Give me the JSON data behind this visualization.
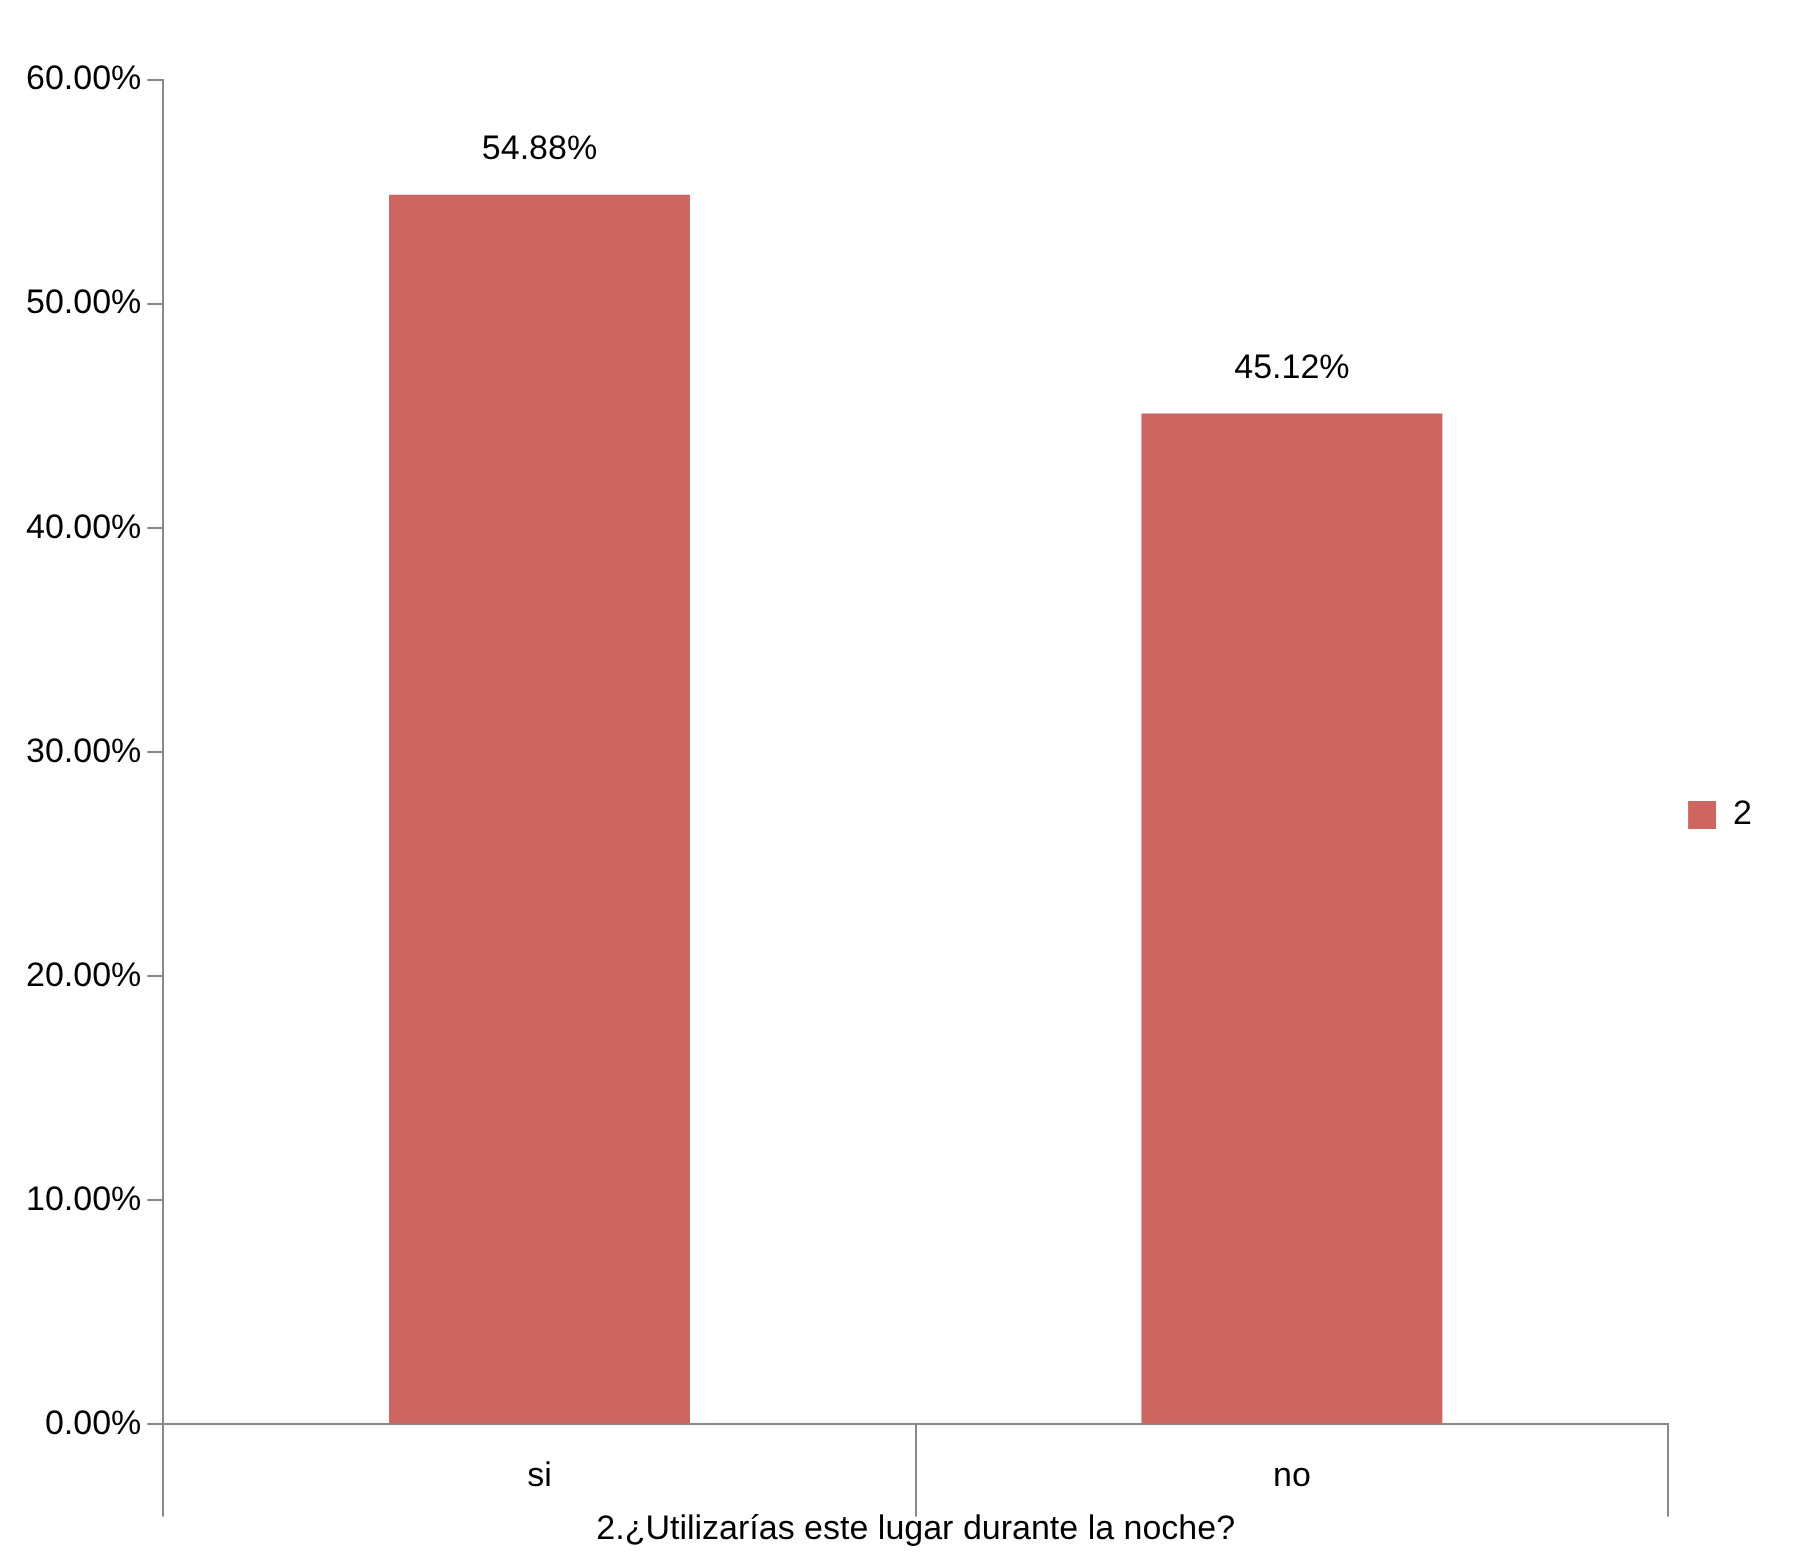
{
  "chart_data": {
    "type": "bar",
    "xlabel": "2.¿Utilizarías este lugar durante la noche?",
    "categories": [
      "si",
      "no"
    ],
    "series": [
      {
        "name": "2",
        "color": "#cd6660",
        "values": [
          54.88,
          45.12
        ],
        "value_labels": [
          "54.88%",
          "45.12%"
        ]
      }
    ],
    "ylim": [
      0,
      60
    ],
    "yticks": [
      {
        "value": 0,
        "label": "0.00%"
      },
      {
        "value": 10,
        "label": "10.00%"
      },
      {
        "value": 20,
        "label": "20.00%"
      },
      {
        "value": 30,
        "label": "30.00%"
      },
      {
        "value": 40,
        "label": "40.00%"
      },
      {
        "value": 50,
        "label": "50.00%"
      },
      {
        "value": 60,
        "label": "60.00%"
      }
    ],
    "grid": false,
    "legend": "right"
  }
}
